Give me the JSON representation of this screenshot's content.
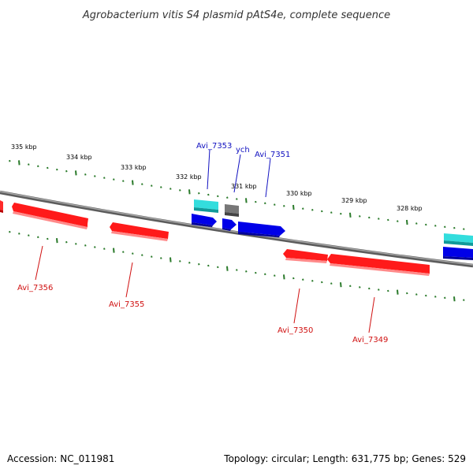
{
  "title": "Agrobacterium vitis S4 plasmid pAtS4e, complete sequence",
  "footer": {
    "accession": "Accession: NC_011981",
    "summary": "Topology: circular; Length: 631,775 bp; Genes: 529"
  },
  "colors": {
    "backbone": "#808080",
    "tick": "#2a7a2a",
    "forward_gene": "#0000e0",
    "reverse_gene": "#e60000",
    "rna": "#22c4c4",
    "other": "#707070",
    "forward_label": "#1010c0",
    "reverse_label": "#d01010"
  },
  "scale": {
    "labels": [
      "335 kbp",
      "334 kbp",
      "333 kbp",
      "332 kbp",
      "331 kbp",
      "330 kbp",
      "329 kbp",
      "328 kbp"
    ]
  },
  "gene_labels": {
    "forward": [
      "Avi_7353",
      "ych",
      "Avi_7351"
    ],
    "reverse": [
      "Avi_7356",
      "Avi_7355",
      "Avi_7350",
      "Avi_7349"
    ]
  },
  "features": [
    {
      "type": "reverse_gene",
      "strand": "reverse"
    },
    {
      "type": "reverse_gene",
      "strand": "reverse"
    },
    {
      "type": "reverse_gene",
      "strand": "reverse"
    },
    {
      "type": "reverse_gene",
      "strand": "reverse"
    },
    {
      "type": "reverse_gene",
      "strand": "reverse"
    },
    {
      "type": "forward_gene",
      "strand": "forward"
    },
    {
      "type": "forward_gene",
      "strand": "forward"
    },
    {
      "type": "forward_gene",
      "strand": "forward"
    },
    {
      "type": "forward_gene",
      "strand": "forward"
    },
    {
      "type": "rna",
      "strand": "forward"
    },
    {
      "type": "other",
      "strand": "forward"
    },
    {
      "type": "rna",
      "strand": "forward"
    }
  ]
}
